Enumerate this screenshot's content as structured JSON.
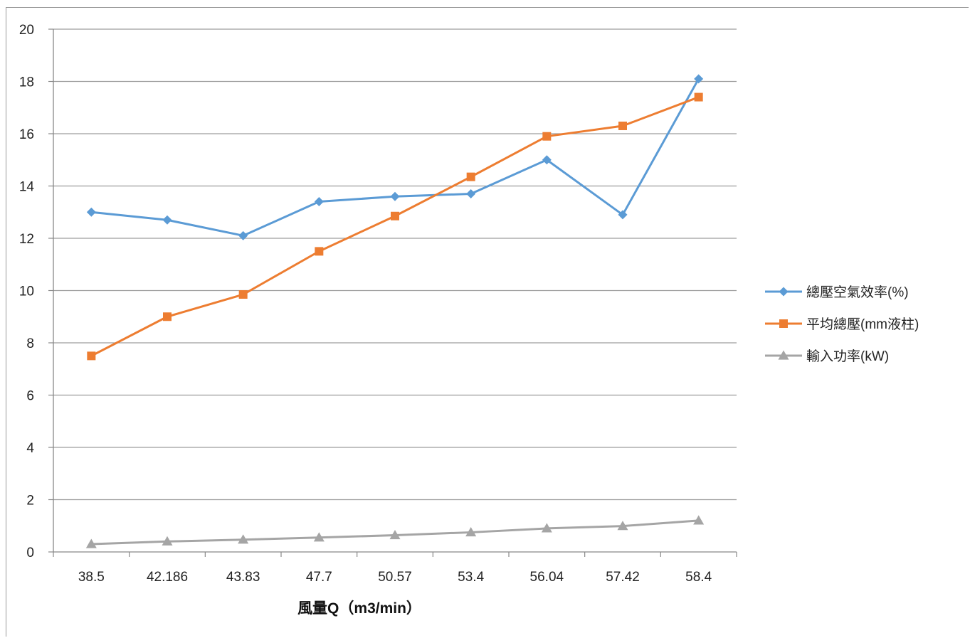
{
  "chart_data": {
    "type": "line",
    "categories": [
      "38.5",
      "42.186",
      "43.83",
      "47.7",
      "50.57",
      "53.4",
      "56.04",
      "57.42",
      "58.4"
    ],
    "xlabel": "風量Q（m3/min）",
    "ylabel": "",
    "title": "",
    "ylim": [
      0,
      20
    ],
    "yticks": [
      "0",
      "2",
      "4",
      "6",
      "8",
      "10",
      "12",
      "14",
      "16",
      "18",
      "20"
    ],
    "grid": true,
    "legend_position": "right",
    "series": [
      {
        "name": "總壓空氣效率(%)",
        "color": "#5b9bd5",
        "marker": "diamond",
        "values": [
          13.0,
          12.7,
          12.1,
          13.4,
          13.6,
          13.7,
          15.0,
          12.9,
          18.1
        ]
      },
      {
        "name": "平均總壓(mm液柱)",
        "color": "#ed7d31",
        "marker": "square",
        "values": [
          7.5,
          9.0,
          9.85,
          11.5,
          12.85,
          14.35,
          15.9,
          16.3,
          17.4
        ]
      },
      {
        "name": "輸入功率(kW)",
        "color": "#a5a5a5",
        "marker": "triangle",
        "values": [
          0.3,
          0.4,
          0.47,
          0.55,
          0.64,
          0.75,
          0.9,
          0.99,
          1.2
        ]
      }
    ]
  }
}
